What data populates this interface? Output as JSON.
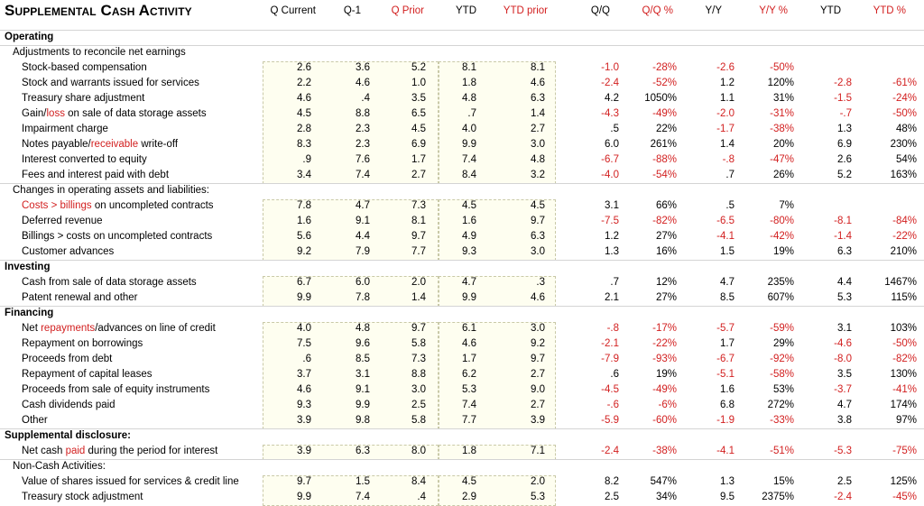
{
  "title": "Supplemental Cash Activity",
  "headers": [
    {
      "text": "Q Current",
      "red": false
    },
    {
      "text": "Q-1",
      "red": false
    },
    {
      "text": "Q Prior",
      "red": true
    },
    {
      "text": "YTD",
      "red": false
    },
    {
      "text": "YTD prior",
      "red": true
    },
    {
      "text": "Q/Q",
      "red": false
    },
    {
      "text": "Q/Q %",
      "red": true
    },
    {
      "text": "Y/Y",
      "red": false
    },
    {
      "text": "Y/Y %",
      "red": true
    },
    {
      "text": "YTD",
      "red": false
    },
    {
      "text": "YTD %",
      "red": true
    }
  ],
  "rows": [
    {
      "type": "section",
      "label": "Operating"
    },
    {
      "type": "sub",
      "label": "Adjustments to reconcile net earnings"
    },
    {
      "type": "data",
      "label": "Stock-based compensation",
      "vals": [
        "2.6",
        "3.6",
        "5.2",
        "8.1",
        "8.1",
        "-1.0",
        "-28%",
        "-2.6",
        "-50%",
        "",
        ""
      ]
    },
    {
      "type": "data",
      "label": "Stock and warrants issued for services",
      "vals": [
        "2.2",
        "4.6",
        "1.0",
        "1.8",
        "4.6",
        "-2.4",
        "-52%",
        "1.2",
        "120%",
        "-2.8",
        "-61%"
      ]
    },
    {
      "type": "data",
      "label": "Treasury share adjustment",
      "vals": [
        "4.6",
        ".4",
        "3.5",
        "4.8",
        "6.3",
        "4.2",
        "1050%",
        "1.1",
        "31%",
        "-1.5",
        "-24%"
      ]
    },
    {
      "type": "data",
      "label": "Gain/loss on sale of data storage assets",
      "parts": [
        {
          "t": "Gain/",
          "r": false
        },
        {
          "t": "loss",
          "r": true
        },
        {
          "t": " on sale of data storage assets",
          "r": false
        }
      ],
      "vals": [
        "4.5",
        "8.8",
        "6.5",
        ".7",
        "1.4",
        "-4.3",
        "-49%",
        "-2.0",
        "-31%",
        "-.7",
        "-50%"
      ]
    },
    {
      "type": "data",
      "label": "Impairment charge",
      "vals": [
        "2.8",
        "2.3",
        "4.5",
        "4.0",
        "2.7",
        ".5",
        "22%",
        "-1.7",
        "-38%",
        "1.3",
        "48%"
      ]
    },
    {
      "type": "data",
      "label": "Notes payable/receivable write-off",
      "parts": [
        {
          "t": "Notes payable/",
          "r": false
        },
        {
          "t": "receivable",
          "r": true
        },
        {
          "t": " write-off",
          "r": false
        }
      ],
      "vals": [
        "8.3",
        "2.3",
        "6.9",
        "9.9",
        "3.0",
        "6.0",
        "261%",
        "1.4",
        "20%",
        "6.9",
        "230%"
      ]
    },
    {
      "type": "data",
      "label": "Interest converted to equity",
      "vals": [
        ".9",
        "7.6",
        "1.7",
        "7.4",
        "4.8",
        "-6.7",
        "-88%",
        "-.8",
        "-47%",
        "2.6",
        "54%"
      ]
    },
    {
      "type": "data",
      "label": "Fees and interest paid with debt",
      "vals": [
        "3.4",
        "7.4",
        "2.7",
        "8.4",
        "3.2",
        "-4.0",
        "-54%",
        ".7",
        "26%",
        "5.2",
        "163%"
      ]
    },
    {
      "type": "sub",
      "label": "Changes in operating assets and liabilities:"
    },
    {
      "type": "data",
      "label": "Costs > billings on uncompleted contracts",
      "parts": [
        {
          "t": "Costs > billings",
          "r": true
        },
        {
          "t": " on uncompleted contracts",
          "r": false
        }
      ],
      "vals": [
        "7.8",
        "4.7",
        "7.3",
        "4.5",
        "4.5",
        "3.1",
        "66%",
        ".5",
        "7%",
        "",
        ""
      ]
    },
    {
      "type": "data",
      "label": "Deferred revenue",
      "vals": [
        "1.6",
        "9.1",
        "8.1",
        "1.6",
        "9.7",
        "-7.5",
        "-82%",
        "-6.5",
        "-80%",
        "-8.1",
        "-84%"
      ]
    },
    {
      "type": "data",
      "label": "Billings > costs on uncompleted contracts",
      "vals": [
        "5.6",
        "4.4",
        "9.7",
        "4.9",
        "6.3",
        "1.2",
        "27%",
        "-4.1",
        "-42%",
        "-1.4",
        "-22%"
      ]
    },
    {
      "type": "data",
      "label": "Customer advances",
      "vals": [
        "9.2",
        "7.9",
        "7.7",
        "9.3",
        "3.0",
        "1.3",
        "16%",
        "1.5",
        "19%",
        "6.3",
        "210%"
      ]
    },
    {
      "type": "section",
      "label": "Investing"
    },
    {
      "type": "data",
      "label": "Cash from sale of data storage assets",
      "vals": [
        "6.7",
        "6.0",
        "2.0",
        "4.7",
        ".3",
        ".7",
        "12%",
        "4.7",
        "235%",
        "4.4",
        "1467%"
      ]
    },
    {
      "type": "data",
      "label": "Patent renewal and other",
      "vals": [
        "9.9",
        "7.8",
        "1.4",
        "9.9",
        "4.6",
        "2.1",
        "27%",
        "8.5",
        "607%",
        "5.3",
        "115%"
      ]
    },
    {
      "type": "section",
      "label": "Financing"
    },
    {
      "type": "data",
      "label": "Net repayments/advances on line of credit",
      "parts": [
        {
          "t": "Net ",
          "r": false
        },
        {
          "t": "repayments",
          "r": true
        },
        {
          "t": "/advances on line of credit",
          "r": false
        }
      ],
      "vals": [
        "4.0",
        "4.8",
        "9.7",
        "6.1",
        "3.0",
        "-.8",
        "-17%",
        "-5.7",
        "-59%",
        "3.1",
        "103%"
      ]
    },
    {
      "type": "data",
      "label": "Repayment on borrowings",
      "vals": [
        "7.5",
        "9.6",
        "5.8",
        "4.6",
        "9.2",
        "-2.1",
        "-22%",
        "1.7",
        "29%",
        "-4.6",
        "-50%"
      ]
    },
    {
      "type": "data",
      "label": "Proceeds from debt",
      "vals": [
        ".6",
        "8.5",
        "7.3",
        "1.7",
        "9.7",
        "-7.9",
        "-93%",
        "-6.7",
        "-92%",
        "-8.0",
        "-82%"
      ]
    },
    {
      "type": "data",
      "label": "Repayment of capital leases",
      "vals": [
        "3.7",
        "3.1",
        "8.8",
        "6.2",
        "2.7",
        ".6",
        "19%",
        "-5.1",
        "-58%",
        "3.5",
        "130%"
      ]
    },
    {
      "type": "data",
      "label": "Proceeds from sale of equity instruments",
      "vals": [
        "4.6",
        "9.1",
        "3.0",
        "5.3",
        "9.0",
        "-4.5",
        "-49%",
        "1.6",
        "53%",
        "-3.7",
        "-41%"
      ]
    },
    {
      "type": "data",
      "label": "Cash dividends paid",
      "vals": [
        "9.3",
        "9.9",
        "2.5",
        "7.4",
        "2.7",
        "-.6",
        "-6%",
        "6.8",
        "272%",
        "4.7",
        "174%"
      ]
    },
    {
      "type": "data",
      "label": "Other",
      "vals": [
        "3.9",
        "9.8",
        "5.8",
        "7.7",
        "3.9",
        "-5.9",
        "-60%",
        "-1.9",
        "-33%",
        "3.8",
        "97%"
      ]
    },
    {
      "type": "section",
      "label": "Supplemental disclosure:"
    },
    {
      "type": "data",
      "label": "Net cash paid during the period for interest",
      "parts": [
        {
          "t": "Net cash ",
          "r": false
        },
        {
          "t": "paid",
          "r": true
        },
        {
          "t": " during the period for interest",
          "r": false
        }
      ],
      "vals": [
        "3.9",
        "6.3",
        "8.0",
        "1.8",
        "7.1",
        "-2.4",
        "-38%",
        "-4.1",
        "-51%",
        "-5.3",
        "-75%"
      ]
    },
    {
      "type": "sub",
      "label": "Non-Cash Activities:"
    },
    {
      "type": "data",
      "label": "Value of shares issued for services & credit line",
      "vals": [
        "9.7",
        "1.5",
        "8.4",
        "4.5",
        "2.0",
        "8.2",
        "547%",
        "1.3",
        "15%",
        "2.5",
        "125%"
      ]
    },
    {
      "type": "data",
      "label": "Treasury stock adjustment",
      "vals": [
        "9.9",
        "7.4",
        ".4",
        "2.9",
        "5.3",
        "2.5",
        "34%",
        "9.5",
        "2375%",
        "-2.4",
        "-45%"
      ]
    }
  ],
  "colors": {
    "negative": "#d21f1f",
    "box_fill": "#fefef0",
    "box_border": "#c9c9a8"
  }
}
